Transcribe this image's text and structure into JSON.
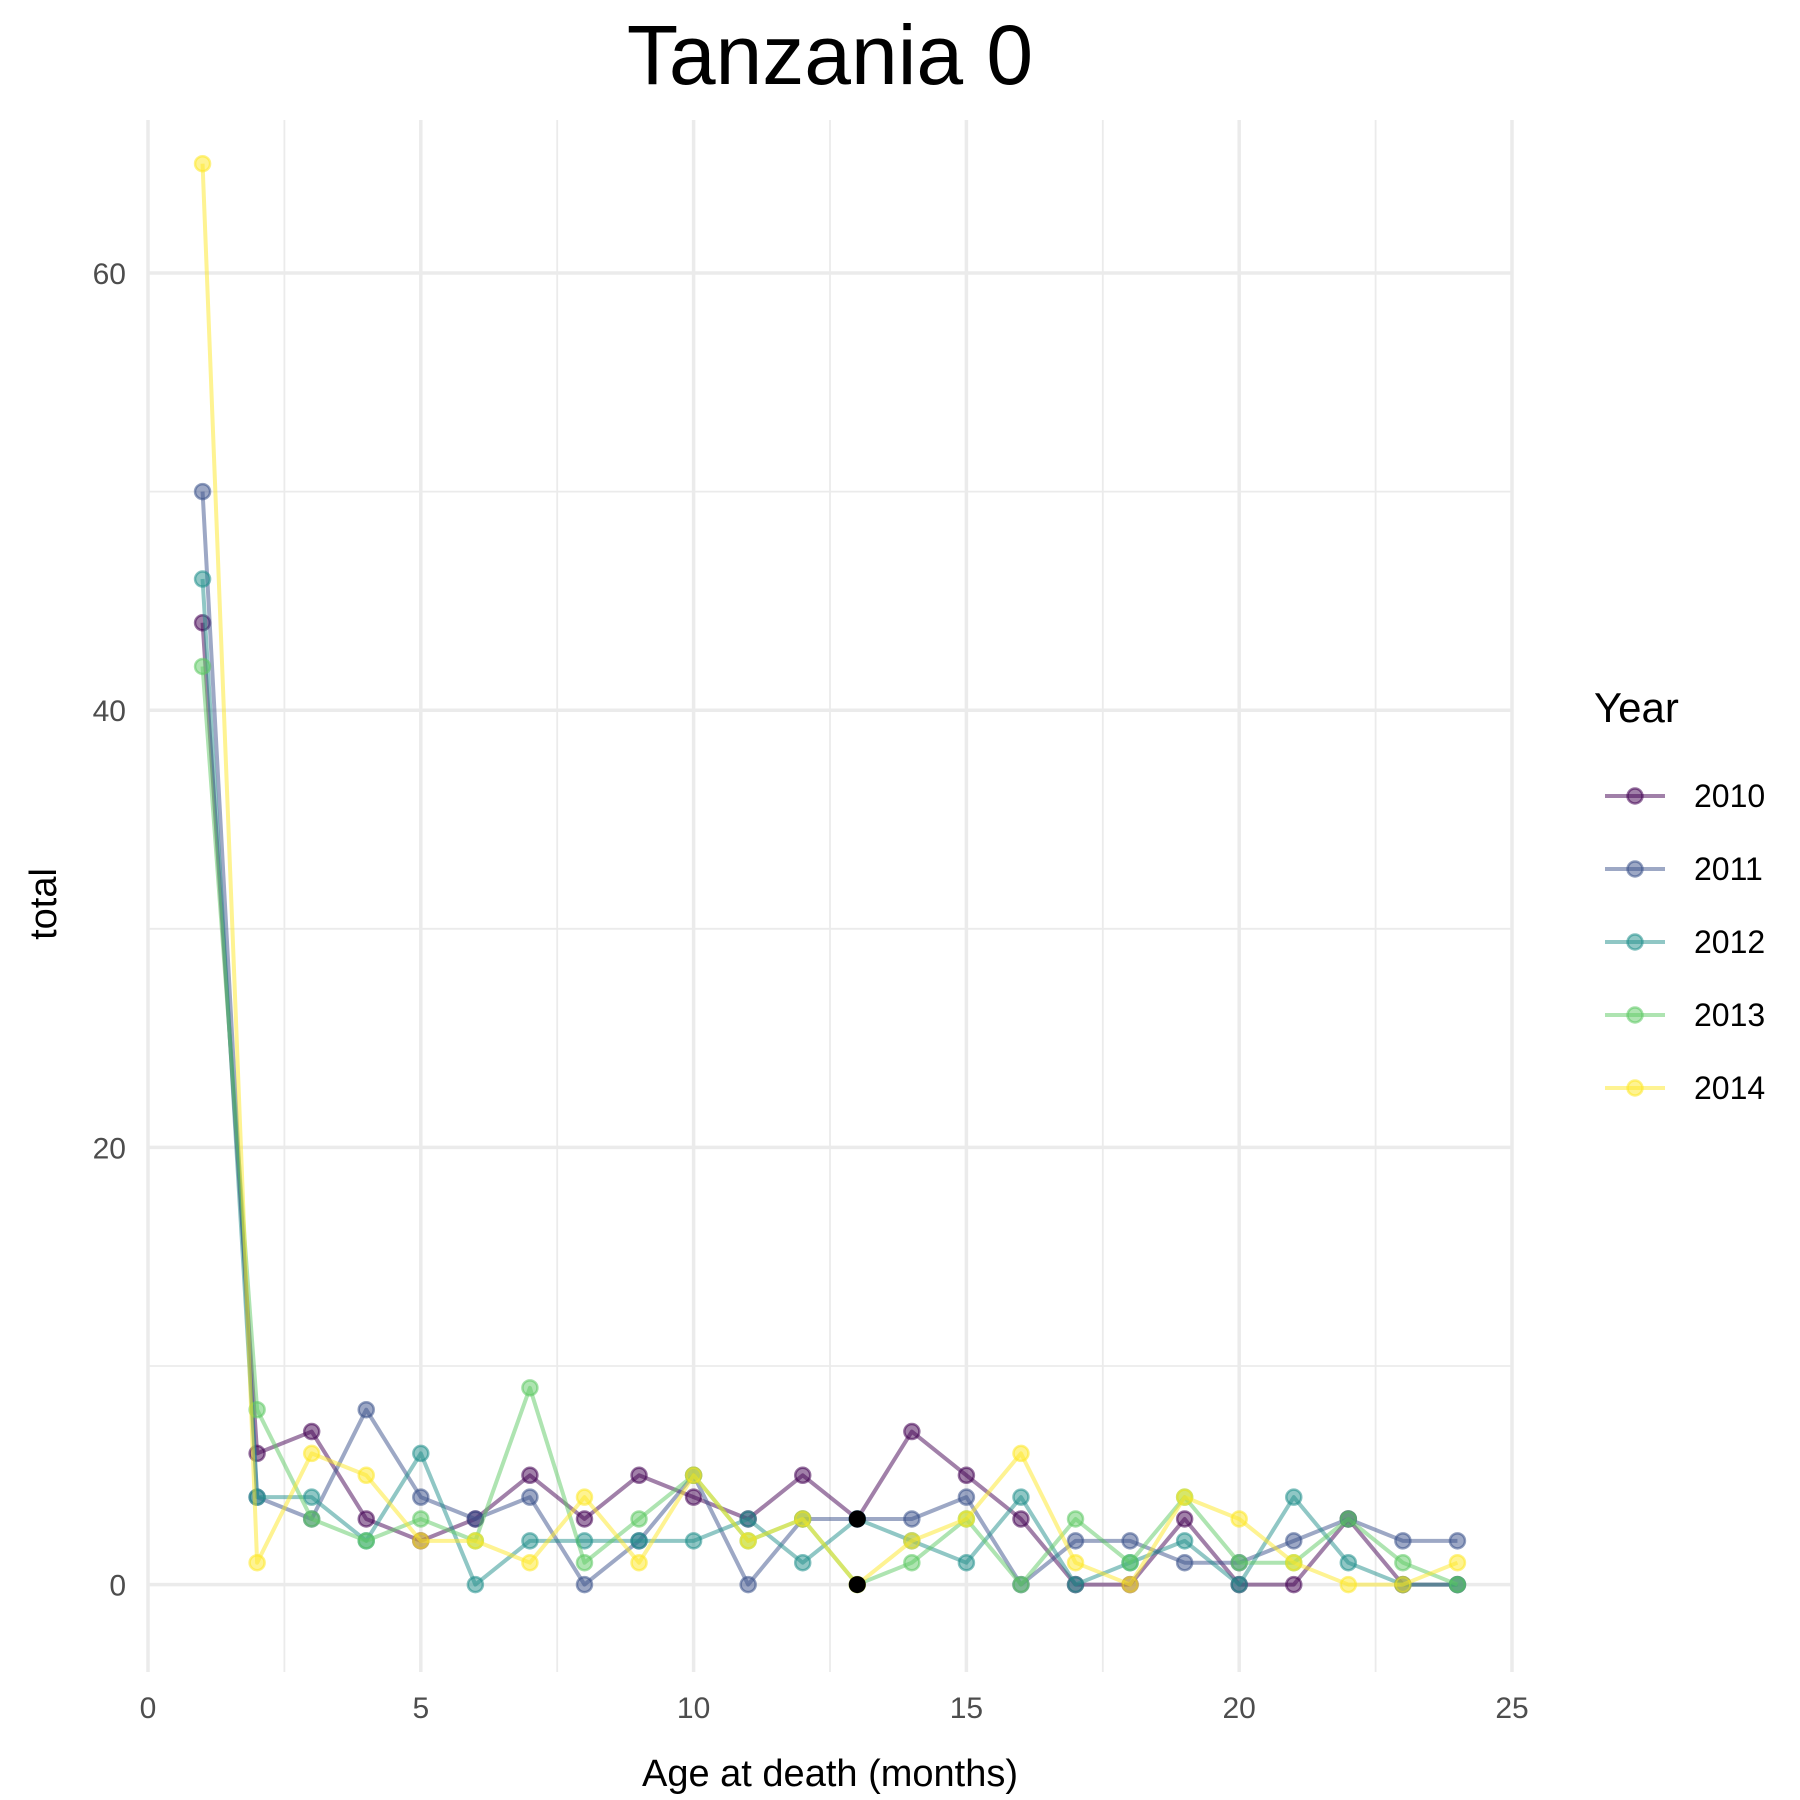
{
  "chart_data": {
    "type": "line",
    "title": "Tanzania 0",
    "xlabel": "Age at death (months)",
    "ylabel": "total",
    "xlim": [
      0,
      25
    ],
    "ylim": [
      -4,
      67
    ],
    "x_ticks": [
      0,
      5,
      10,
      15,
      20,
      25
    ],
    "y_ticks": [
      0,
      20,
      40,
      60
    ],
    "grid": true,
    "legend": {
      "title": "Year",
      "position": "right"
    },
    "x": [
      1,
      2,
      3,
      4,
      5,
      6,
      7,
      8,
      9,
      10,
      11,
      12,
      13,
      14,
      15,
      16,
      17,
      18,
      19,
      20,
      21,
      22,
      23,
      24
    ],
    "series": [
      {
        "name": "2010",
        "color": "#440154",
        "values": [
          44,
          6,
          7,
          3,
          2,
          3,
          5,
          3,
          5,
          4,
          3,
          5,
          3,
          7,
          5,
          3,
          0,
          0,
          3,
          0,
          0,
          3,
          0,
          0
        ]
      },
      {
        "name": "2011",
        "color": "#3b528b",
        "values": [
          50,
          4,
          3,
          8,
          4,
          3,
          4,
          0,
          2,
          5,
          0,
          3,
          3,
          3,
          4,
          0,
          2,
          2,
          1,
          1,
          2,
          3,
          2,
          2
        ]
      },
      {
        "name": "2012",
        "color": "#21908c",
        "values": [
          46,
          4,
          4,
          2,
          6,
          0,
          2,
          2,
          2,
          2,
          3,
          1,
          3,
          2,
          1,
          4,
          0,
          1,
          2,
          0,
          4,
          1,
          0,
          0
        ]
      },
      {
        "name": "2013",
        "color": "#5dc963",
        "values": [
          42,
          8,
          3,
          2,
          3,
          2,
          9,
          1,
          3,
          5,
          2,
          3,
          0,
          1,
          3,
          0,
          3,
          1,
          4,
          1,
          1,
          3,
          1,
          0
        ]
      },
      {
        "name": "2014",
        "color": "#fde725",
        "values": [
          65,
          1,
          6,
          5,
          2,
          2,
          1,
          4,
          1,
          5,
          2,
          3,
          0,
          2,
          3,
          6,
          1,
          0,
          4,
          3,
          1,
          0,
          0,
          1
        ]
      }
    ],
    "highlight_points": [
      {
        "x": 13,
        "y": 3,
        "color": "#000000"
      },
      {
        "x": 13,
        "y": 0,
        "color": "#000000"
      }
    ]
  }
}
